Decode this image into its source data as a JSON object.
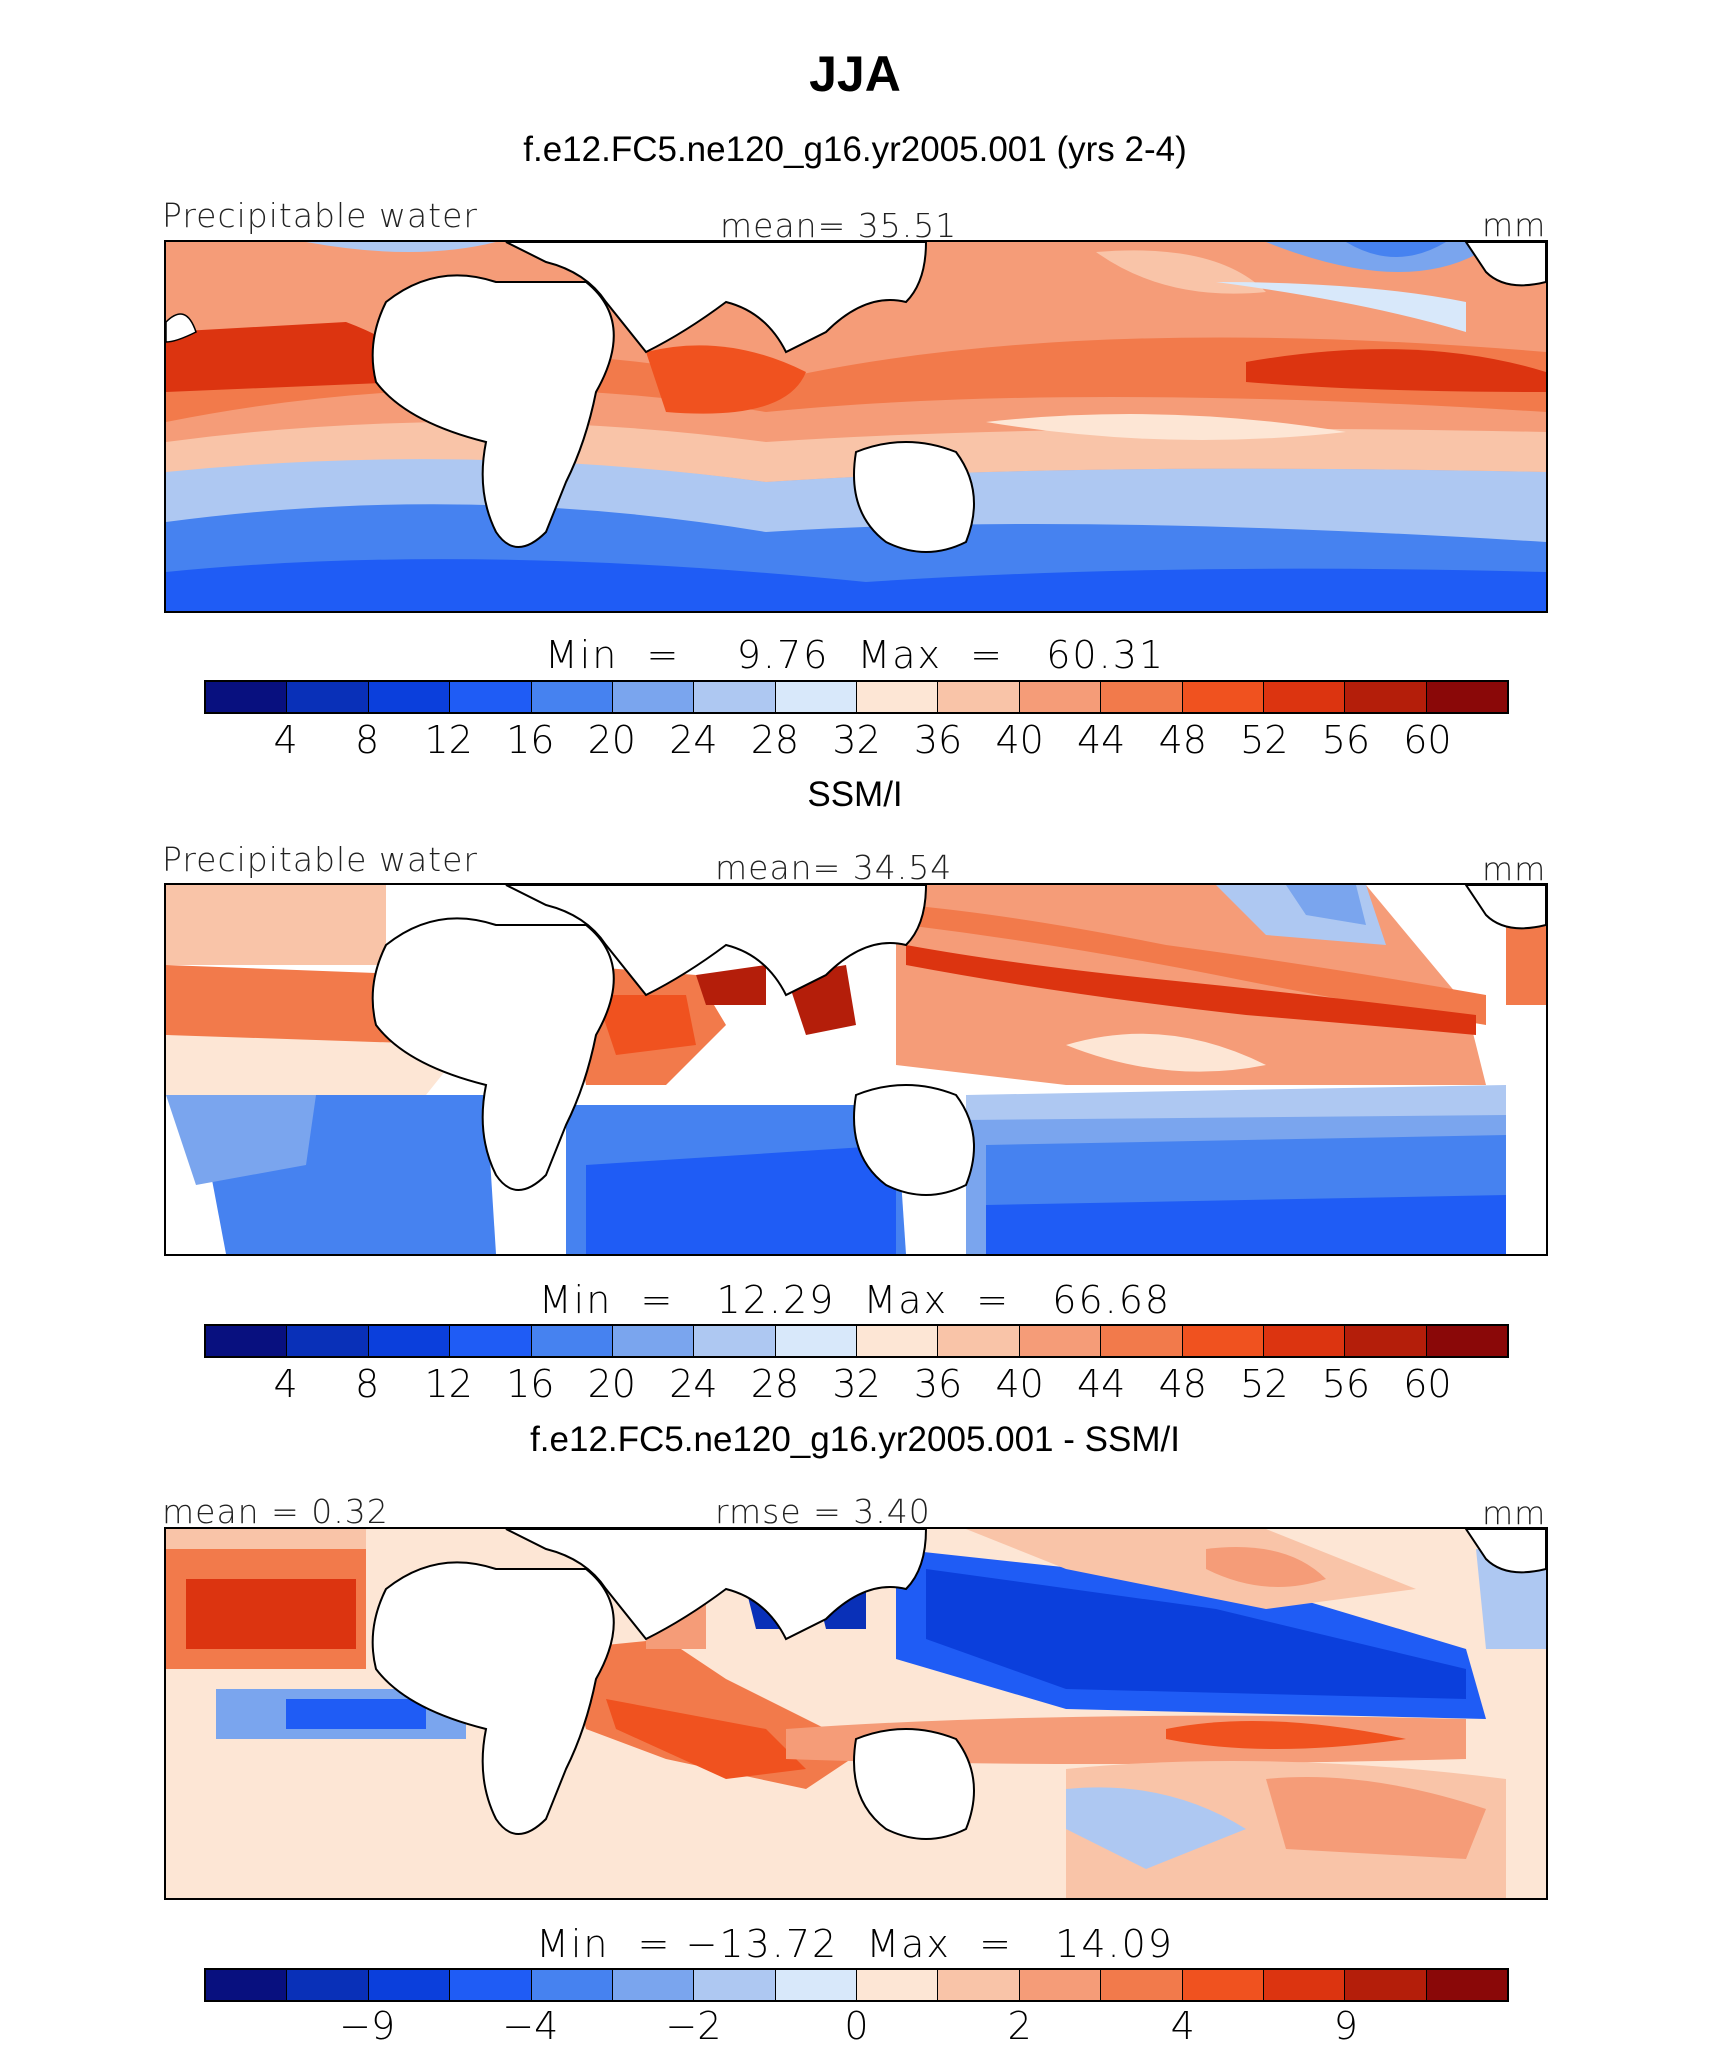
{
  "figure_title": "JJA",
  "palette": [
    "#08107f",
    "#0930b8",
    "#0b3fdc",
    "#1f5cf5",
    "#4682f0",
    "#7aa5ee",
    "#aec8f2",
    "#d8e8fa",
    "#fde6d5",
    "#f9c4a8",
    "#f59c78",
    "#f27a4b",
    "#f0521f",
    "#dc3410",
    "#b41e0a",
    "#8a0808"
  ],
  "panels": [
    {
      "title": "f.e12.FC5.ne120_g16.yr2005.001 (yrs 2-4)",
      "left_label": "Precipitable water",
      "center_label": "mean=  35.51",
      "units": "mm",
      "minmax": "Min  =    9.76  Max  =   60.31",
      "ticks": [
        "4",
        "8",
        "12",
        "16",
        "20",
        "24",
        "28",
        "32",
        "36",
        "40",
        "44",
        "48",
        "52",
        "56",
        "60"
      ]
    },
    {
      "title": "SSM/I",
      "left_label": "Precipitable water",
      "center_label": "mean=  34.54",
      "units": "mm",
      "minmax": "Min  =   12.29  Max  =   66.68",
      "ticks": [
        "4",
        "8",
        "12",
        "16",
        "20",
        "24",
        "28",
        "32",
        "36",
        "40",
        "44",
        "48",
        "52",
        "56",
        "60"
      ]
    },
    {
      "title": "f.e12.FC5.ne120_g16.yr2005.001 - SSM/I",
      "left_label": "mean =   0.32",
      "center_label": "rmse =   3.40",
      "units": "mm",
      "minmax": "Min  = −13.72  Max  =   14.09",
      "ticks": [
        "−9",
        "−4",
        "−2",
        "0",
        "2",
        "4",
        "9"
      ]
    }
  ],
  "chart_data": [
    {
      "type": "heatmap",
      "title": "f.e12.FC5.ne120_g16.yr2005.001 (yrs 2-4)",
      "variable": "Precipitable water",
      "units": "mm",
      "mean": 35.51,
      "min": 9.76,
      "max": 60.31,
      "contour_levels": [
        4,
        8,
        12,
        16,
        20,
        24,
        28,
        32,
        36,
        40,
        44,
        48,
        52,
        56,
        60
      ]
    },
    {
      "type": "heatmap",
      "title": "SSM/I",
      "variable": "Precipitable water",
      "units": "mm",
      "mean": 34.54,
      "min": 12.29,
      "max": 66.68,
      "contour_levels": [
        4,
        8,
        12,
        16,
        20,
        24,
        28,
        32,
        36,
        40,
        44,
        48,
        52,
        56,
        60
      ]
    },
    {
      "type": "heatmap",
      "title": "f.e12.FC5.ne120_g16.yr2005.001 - SSM/I",
      "variable": "Precipitable water difference",
      "units": "mm",
      "mean": 0.32,
      "rmse": 3.4,
      "min": -13.72,
      "max": 14.09,
      "contour_levels": [
        -9,
        -4,
        -2,
        0,
        2,
        4,
        9
      ]
    }
  ]
}
